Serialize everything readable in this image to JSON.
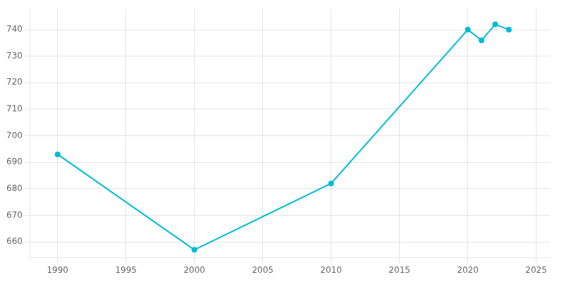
{
  "chart_data": {
    "type": "line",
    "x": [
      1990,
      2000,
      2010,
      2020,
      2021,
      2022,
      2023
    ],
    "values": [
      693,
      657,
      682,
      740,
      736,
      742,
      740
    ],
    "color": "#00BCD4",
    "marker": "circle",
    "xlim": [
      1988,
      2026
    ],
    "ylim": [
      654,
      748
    ],
    "xticks": [
      1990,
      1995,
      2000,
      2005,
      2010,
      2015,
      2020,
      2025
    ],
    "yticks": [
      660,
      670,
      680,
      690,
      700,
      710,
      720,
      730,
      740
    ],
    "grid": true
  }
}
